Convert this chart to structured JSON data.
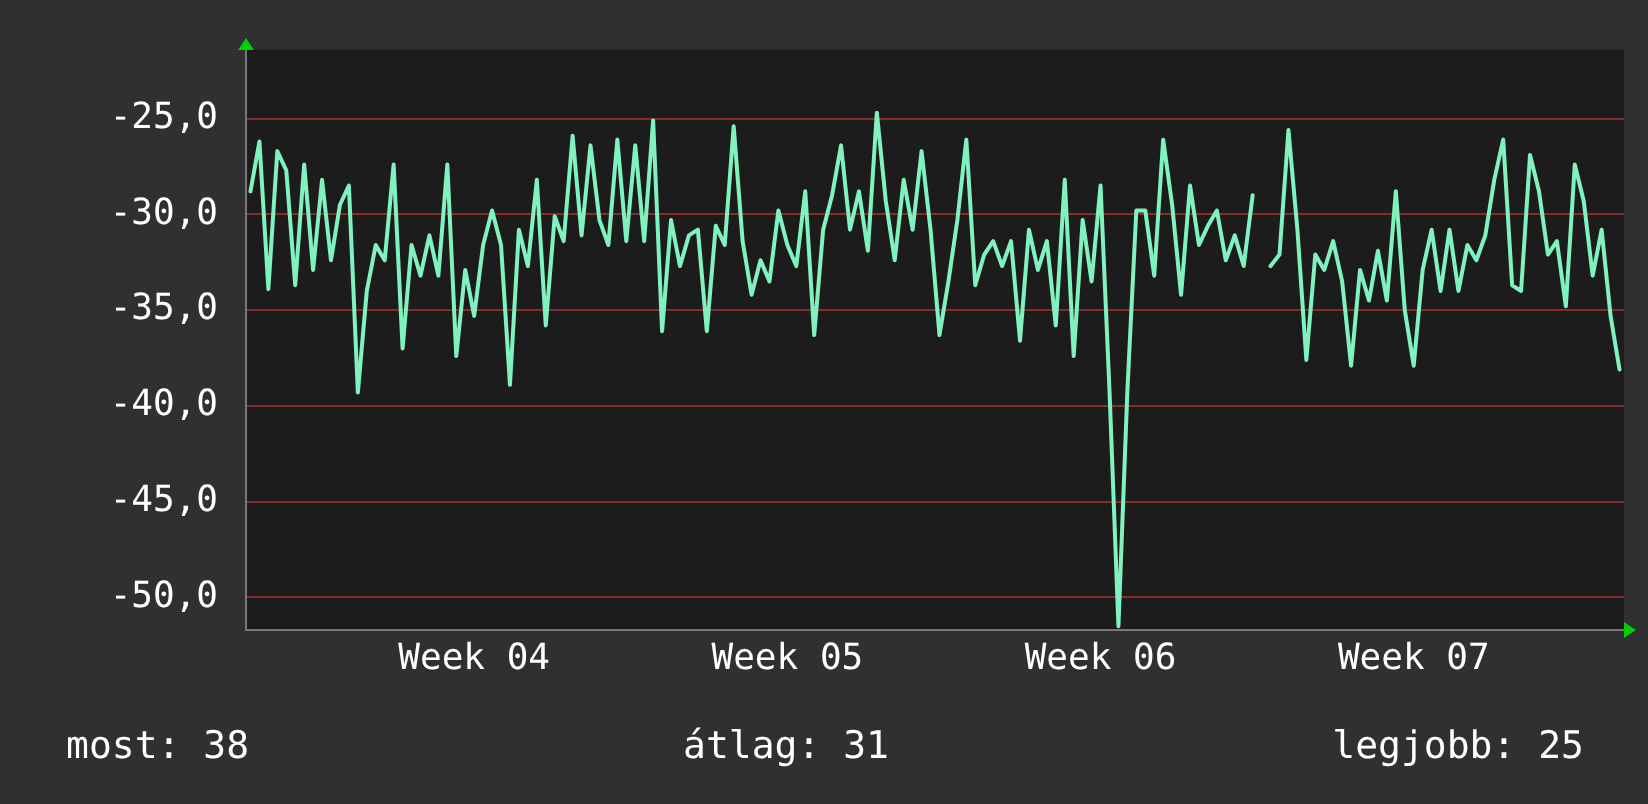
{
  "chart_data": {
    "type": "line",
    "categories": [
      null,
      null,
      null,
      null,
      null,
      null,
      null,
      null,
      null,
      null,
      null,
      null,
      null,
      null,
      null,
      null,
      null,
      null,
      null,
      null,
      null,
      null,
      null,
      null,
      null,
      "Week 04",
      null,
      null,
      null,
      null,
      null,
      null,
      null,
      null,
      null,
      null,
      null,
      null,
      null,
      null,
      null,
      null,
      null,
      null,
      null,
      null,
      null,
      null,
      null,
      null,
      null,
      null,
      null,
      null,
      null,
      null,
      null,
      null,
      null,
      null,
      "Week 05",
      null,
      null,
      null,
      null,
      null,
      null,
      null,
      null,
      null,
      null,
      null,
      null,
      null,
      null,
      null,
      null,
      null,
      null,
      null,
      null,
      null,
      null,
      null,
      null,
      null,
      null,
      null,
      null,
      null,
      null,
      null,
      null,
      null,
      null,
      "Week 06",
      null,
      null,
      null,
      null,
      null,
      null,
      null,
      null,
      null,
      null,
      null,
      null,
      null,
      null,
      null,
      null,
      null,
      null,
      null,
      null,
      null,
      null,
      null,
      null,
      null,
      null,
      null,
      null,
      null,
      null,
      null,
      null,
      null,
      null,
      "Week 07",
      null,
      null,
      null,
      null,
      null,
      null,
      null,
      null,
      null,
      null,
      null,
      null,
      null,
      null,
      null,
      null,
      null,
      null,
      null,
      null,
      null,
      null,
      null
    ],
    "series": [
      {
        "color": "#80f2c0",
        "values": [
          -28.8,
          -26.2,
          -33.9,
          -26.7,
          -27.7,
          -33.7,
          -27.4,
          -32.9,
          -28.2,
          -32.4,
          -29.5,
          -28.5,
          -39.3,
          -34.0,
          -31.6,
          -32.4,
          -27.4,
          -37.0,
          -31.6,
          -33.2,
          -31.1,
          -33.2,
          -27.4,
          -37.4,
          -32.9,
          -35.3,
          -31.6,
          -29.8,
          -31.6,
          -38.9,
          -30.8,
          -32.7,
          -28.2,
          -35.8,
          -30.1,
          -31.4,
          -25.9,
          -31.1,
          -26.4,
          -30.3,
          -31.6,
          -26.1,
          -31.4,
          -26.4,
          -31.4,
          -25.1,
          -36.1,
          -30.3,
          -32.7,
          -31.1,
          -30.8,
          -36.1,
          -30.6,
          -31.6,
          -25.4,
          -31.4,
          -34.2,
          -32.4,
          -33.5,
          -29.8,
          -31.6,
          -32.7,
          -28.8,
          -36.3,
          -30.8,
          -29.0,
          -26.4,
          -30.8,
          -28.8,
          -31.9,
          -24.7,
          -29.3,
          -32.4,
          -28.2,
          -30.8,
          -26.7,
          -30.8,
          -36.3,
          -33.5,
          -30.3,
          -26.1,
          -33.7,
          -32.1,
          -31.4,
          -32.7,
          -31.4,
          -36.6,
          -30.8,
          -32.9,
          -31.4,
          -35.8,
          -28.2,
          -37.4,
          -30.3,
          -33.5,
          -28.5,
          -39.2,
          -51.5,
          -39.2,
          -29.8,
          -29.8,
          -33.2,
          -26.1,
          -29.5,
          -34.2,
          -28.5,
          -31.6,
          -30.6,
          -29.8,
          -32.4,
          -31.1,
          -32.7,
          -29.0,
          null,
          -32.7,
          -32.1,
          -25.6,
          -30.8,
          -37.6,
          -32.1,
          -32.9,
          -31.4,
          -33.5,
          -37.9,
          -32.9,
          -34.5,
          -31.9,
          -34.5,
          -28.8,
          -35.0,
          -37.9,
          -32.9,
          -30.8,
          -34.0,
          -30.8,
          -34.0,
          -31.6,
          -32.4,
          -31.1,
          -28.2,
          -26.1,
          -33.7,
          -34.0,
          -26.9,
          -28.8,
          -32.1,
          -31.4,
          -34.8,
          -27.4,
          -29.3,
          -33.2,
          -30.8,
          -35.3,
          -38.1
        ]
      }
    ],
    "ylim": [
      -51.7,
      -21.4
    ],
    "yticks": [
      {
        "value": -50,
        "label": "-50,0"
      },
      {
        "value": -45,
        "label": "-45,0"
      },
      {
        "value": -40,
        "label": "-40,0"
      },
      {
        "value": -35,
        "label": "-35,0"
      },
      {
        "value": -30,
        "label": "-30,0"
      },
      {
        "value": -25,
        "label": "-25,0"
      }
    ],
    "grid": "y",
    "legend": false,
    "marker": "none",
    "line_style": "solid",
    "annotations": [
      "most: 38",
      "átlag: 31",
      "legjobb: 25"
    ]
  }
}
